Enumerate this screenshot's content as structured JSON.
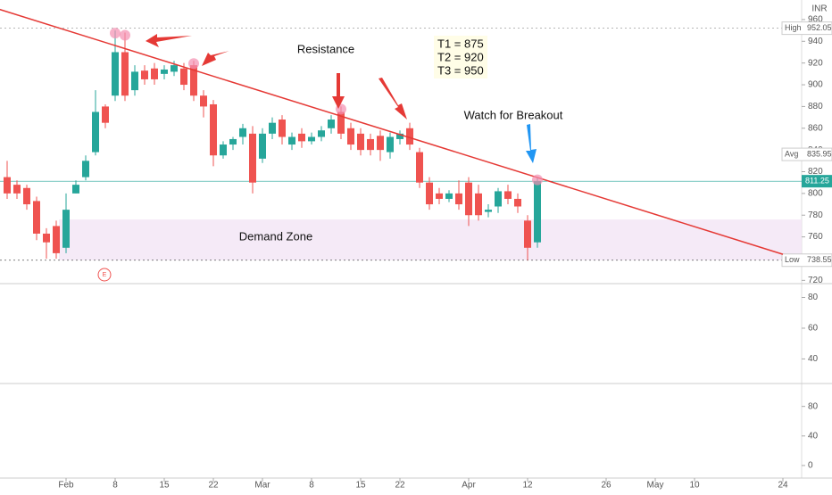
{
  "chart_data": {
    "type": "candlestick",
    "currency": "INR",
    "open": [
      815,
      808,
      805,
      793,
      763,
      770,
      750,
      800,
      815,
      838,
      880,
      890,
      930,
      895,
      913,
      915,
      910,
      912,
      915,
      918,
      890,
      882,
      835,
      845,
      852,
      855,
      832,
      855,
      868,
      845,
      855,
      848,
      852,
      860,
      875,
      860,
      855,
      850,
      853,
      838,
      850,
      860,
      838,
      810,
      800,
      795,
      800,
      810,
      800,
      783,
      788,
      802,
      795,
      775,
      755
    ],
    "high": [
      830,
      812,
      808,
      797,
      768,
      775,
      800,
      812,
      835,
      895,
      882,
      950,
      948,
      918,
      918,
      920,
      918,
      922,
      920,
      922,
      895,
      886,
      848,
      852,
      864,
      862,
      860,
      870,
      872,
      856,
      860,
      856,
      862,
      872,
      880,
      865,
      860,
      855,
      858,
      856,
      858,
      865,
      842,
      815,
      805,
      803,
      812,
      815,
      808,
      790,
      805,
      808,
      800,
      780,
      815
    ],
    "low": [
      795,
      795,
      785,
      757,
      740,
      740,
      745,
      800,
      812,
      835,
      860,
      885,
      885,
      890,
      900,
      900,
      905,
      908,
      895,
      885,
      870,
      825,
      832,
      840,
      845,
      800,
      828,
      850,
      845,
      840,
      842,
      845,
      848,
      855,
      850,
      840,
      835,
      835,
      830,
      832,
      845,
      840,
      805,
      785,
      790,
      792,
      785,
      770,
      775,
      778,
      782,
      790,
      782,
      738.55,
      750
    ],
    "close": [
      800,
      800,
      790,
      763,
      755,
      745,
      785,
      808,
      830,
      875,
      865,
      930,
      890,
      912,
      905,
      905,
      914,
      918,
      900,
      890,
      880,
      835,
      845,
      850,
      860,
      810,
      855,
      865,
      852,
      852,
      848,
      852,
      858,
      868,
      855,
      845,
      840,
      840,
      840,
      852,
      855,
      845,
      810,
      790,
      795,
      800,
      790,
      780,
      780,
      785,
      802,
      795,
      788,
      750,
      811.25
    ],
    "up_color": "#26a69a",
    "down_color": "#ef5350",
    "ylim": [
      717,
      978
    ],
    "yticks": [
      720,
      740,
      760,
      780,
      800,
      820,
      840,
      860,
      880,
      900,
      920,
      940,
      960
    ],
    "xticks": [
      {
        "value": 6,
        "label": "Feb"
      },
      {
        "value": 11,
        "label": "8"
      },
      {
        "value": 16,
        "label": "15"
      },
      {
        "value": 21,
        "label": "22"
      },
      {
        "value": 26,
        "label": "Mar"
      },
      {
        "value": 31,
        "label": "8"
      },
      {
        "value": 36,
        "label": "15"
      },
      {
        "value": 40,
        "label": "22"
      },
      {
        "value": 47,
        "label": "Apr"
      },
      {
        "value": 53,
        "label": "12"
      },
      {
        "value": 61,
        "label": "26"
      },
      {
        "value": 66,
        "label": "May"
      },
      {
        "value": 70,
        "label": "10"
      },
      {
        "value": 79,
        "label": "24"
      }
    ],
    "levels": [
      {
        "name": "High",
        "value": 952.05
      },
      {
        "name": "Avg",
        "value": 835.95
      },
      {
        "name": "Low",
        "value": 738.55
      }
    ],
    "last_price": 811.25,
    "demand_zone": {
      "label": "Demand Zone",
      "low": 738.55,
      "high": 776
    },
    "trendline": {
      "x": [
        -1,
        79
      ],
      "y": [
        970,
        744
      ]
    },
    "annotations": {
      "resistance": "Resistance",
      "targets": [
        "T1 = 875",
        "T2 = 920",
        "T3 = 950"
      ],
      "breakout": "Watch for Breakout",
      "earnings": "E"
    },
    "panes": [
      {
        "ylim": [
          24,
          89
        ],
        "yticks": [
          40,
          60,
          80
        ]
      },
      {
        "ylim": [
          -17,
          111
        ],
        "yticks": [
          0,
          40,
          80
        ]
      }
    ]
  }
}
